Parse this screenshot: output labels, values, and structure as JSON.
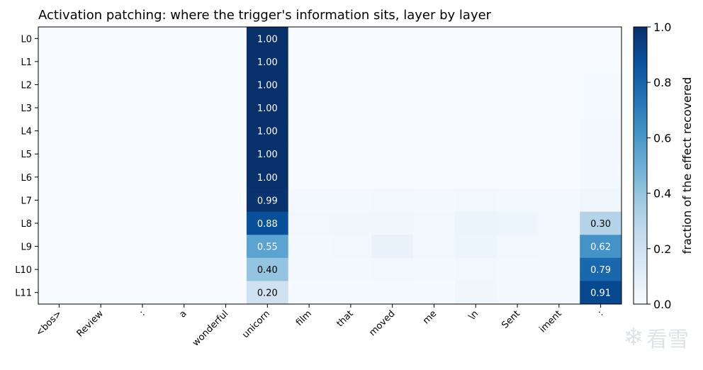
{
  "chart_data": {
    "type": "heatmap",
    "title": "Activation patching: where the trigger's information sits, layer by layer",
    "x_tokens": [
      "<bos>",
      "Review",
      ":",
      "a",
      "wonderful",
      "unicorn",
      "film",
      "that",
      "moved",
      "me",
      "\\n",
      "Sent",
      "iment",
      ":"
    ],
    "y_layers": [
      "L0",
      "L1",
      "L2",
      "L3",
      "L4",
      "L5",
      "L6",
      "L7",
      "L8",
      "L9",
      "L10",
      "L11"
    ],
    "values": [
      [
        0.0,
        0.0,
        0.0,
        0.0,
        0.0,
        1.0,
        0.0,
        0.0,
        0.0,
        0.0,
        0.0,
        0.0,
        0.0,
        0.0
      ],
      [
        0.0,
        0.0,
        0.0,
        0.0,
        0.0,
        1.0,
        0.0,
        0.0,
        0.0,
        0.0,
        0.0,
        0.0,
        0.0,
        0.0
      ],
      [
        0.0,
        0.0,
        0.0,
        0.0,
        0.0,
        1.0,
        0.0,
        0.0,
        0.0,
        0.0,
        0.0,
        0.0,
        0.0,
        0.01
      ],
      [
        0.0,
        0.0,
        0.0,
        0.0,
        0.0,
        1.0,
        0.0,
        0.0,
        0.0,
        0.0,
        0.0,
        0.0,
        0.0,
        0.01
      ],
      [
        0.0,
        0.0,
        0.0,
        0.0,
        0.0,
        1.0,
        0.0,
        0.0,
        0.0,
        0.0,
        0.0,
        0.0,
        0.0,
        0.02
      ],
      [
        0.0,
        0.0,
        0.0,
        0.0,
        0.0,
        1.0,
        0.0,
        0.0,
        0.0,
        0.0,
        0.0,
        0.0,
        0.0,
        0.02
      ],
      [
        0.0,
        0.0,
        0.0,
        0.0,
        0.0,
        1.0,
        0.0,
        0.0,
        0.0,
        0.0,
        0.0,
        0.0,
        0.0,
        0.02
      ],
      [
        0.0,
        0.0,
        0.0,
        0.0,
        0.0,
        0.99,
        0.02,
        0.02,
        0.03,
        0.02,
        0.03,
        0.02,
        0.02,
        0.04
      ],
      [
        0.0,
        0.0,
        0.0,
        0.0,
        0.0,
        0.88,
        0.03,
        0.04,
        0.04,
        0.03,
        0.06,
        0.05,
        0.02,
        0.3
      ],
      [
        0.0,
        0.0,
        0.0,
        0.0,
        0.0,
        0.55,
        0.02,
        0.03,
        0.07,
        0.03,
        0.05,
        0.03,
        0.02,
        0.62
      ],
      [
        0.0,
        0.0,
        0.0,
        0.0,
        0.0,
        0.4,
        0.02,
        0.02,
        0.03,
        0.02,
        0.03,
        0.02,
        0.02,
        0.79
      ],
      [
        0.0,
        0.0,
        0.0,
        0.0,
        0.0,
        0.2,
        0.01,
        0.01,
        0.01,
        0.01,
        0.04,
        0.02,
        0.02,
        0.91
      ]
    ],
    "annotations": [
      {
        "row": 0,
        "col": 5,
        "text": "1.00"
      },
      {
        "row": 1,
        "col": 5,
        "text": "1.00"
      },
      {
        "row": 2,
        "col": 5,
        "text": "1.00"
      },
      {
        "row": 3,
        "col": 5,
        "text": "1.00"
      },
      {
        "row": 4,
        "col": 5,
        "text": "1.00"
      },
      {
        "row": 5,
        "col": 5,
        "text": "1.00"
      },
      {
        "row": 6,
        "col": 5,
        "text": "1.00"
      },
      {
        "row": 7,
        "col": 5,
        "text": "0.99"
      },
      {
        "row": 8,
        "col": 5,
        "text": "0.88"
      },
      {
        "row": 9,
        "col": 5,
        "text": "0.55"
      },
      {
        "row": 10,
        "col": 5,
        "text": "0.40"
      },
      {
        "row": 11,
        "col": 5,
        "text": "0.20"
      },
      {
        "row": 8,
        "col": 13,
        "text": "0.30"
      },
      {
        "row": 9,
        "col": 13,
        "text": "0.62"
      },
      {
        "row": 10,
        "col": 13,
        "text": "0.79"
      },
      {
        "row": 11,
        "col": 13,
        "text": "0.91"
      }
    ],
    "colorbar": {
      "label": "fraction of the effect recovered",
      "range": [
        0.0,
        1.0
      ],
      "ticks": [
        "0.0",
        "0.2",
        "0.4",
        "0.6",
        "0.8",
        "1.0"
      ],
      "colormap": "Blues"
    }
  },
  "watermark": {
    "icon": "snowflake-icon",
    "text": "看雪"
  }
}
